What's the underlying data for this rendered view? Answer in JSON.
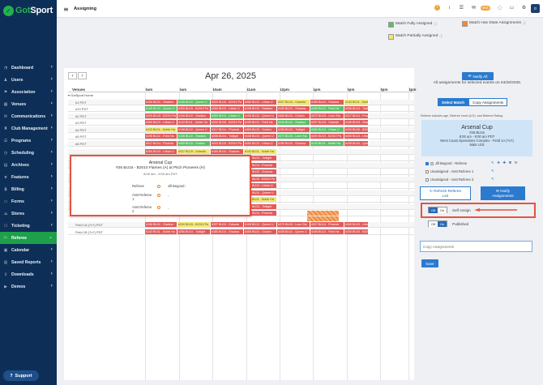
{
  "brand": {
    "name_pre": "Got",
    "name_post": "Sport"
  },
  "nav": [
    {
      "label": "Dashboard",
      "icon": "dashboard-icon",
      "glyph": "◔"
    },
    {
      "label": "Users",
      "icon": "users-icon",
      "glyph": "♟"
    },
    {
      "label": "Association",
      "icon": "association-icon",
      "glyph": "⚑"
    },
    {
      "label": "Venues",
      "icon": "venues-icon",
      "glyph": "▦"
    },
    {
      "label": "Communications",
      "icon": "communications-icon",
      "glyph": "✉"
    },
    {
      "label": "Club Management",
      "icon": "club-icon",
      "glyph": "♜"
    },
    {
      "label": "Programs",
      "icon": "programs-icon",
      "glyph": "☰"
    },
    {
      "label": "Scheduling",
      "icon": "scheduling-icon",
      "glyph": "◷"
    },
    {
      "label": "Archives",
      "icon": "archives-icon",
      "glyph": "▤"
    },
    {
      "label": "Features",
      "icon": "features-icon",
      "glyph": "★"
    },
    {
      "label": "Billing",
      "icon": "billing-icon",
      "glyph": "$"
    },
    {
      "label": "Forms",
      "icon": "forms-icon",
      "glyph": "▭"
    },
    {
      "label": "Stores",
      "icon": "stores-icon",
      "glyph": "⌂"
    },
    {
      "label": "Ticketing",
      "icon": "ticketing-icon",
      "glyph": "⎔"
    },
    {
      "label": "Referee",
      "icon": "referee-icon",
      "glyph": "⚐",
      "active": true
    },
    {
      "label": "Calendar",
      "icon": "calendar-icon",
      "glyph": "▣"
    },
    {
      "label": "Saved Reports",
      "icon": "reports-icon",
      "glyph": "▥"
    },
    {
      "label": "Downloads",
      "icon": "downloads-icon",
      "glyph": "⇩"
    },
    {
      "label": "Demos",
      "icon": "demos-icon",
      "glyph": "▶"
    }
  ],
  "support_label": "Support",
  "page_title": "Assigning",
  "topbar": {
    "badge": "NEW",
    "avatar": "G"
  },
  "legend": {
    "fully": "Match Fully Assigned",
    "partial": "Match Partially Assigned",
    "state": "Match Has State Assignments",
    "colors": {
      "fully": "#5cbf66",
      "partial": "#f3e86a",
      "state": "#f08a3c"
    }
  },
  "calendar": {
    "date": "Apr 26, 2025",
    "venues_header": "Venues",
    "times": [
      "8am",
      "9am",
      "10am",
      "11am",
      "12pm",
      "1pm",
      "2pm",
      "3pm",
      "4pm"
    ],
    "group": "GotSport Home",
    "venue_rows": [
      "#1 PDT",
      "#10 PDT",
      "#2 PDT",
      "#3 PDT",
      "#4 PDT",
      "#5 PDT",
      "#6 PDT"
    ],
    "lower_rows": [
      "Field 1A (7v7) PDT",
      "Field 1B (7v7) PDT"
    ],
    "cell_text": {
      "stadium": "#106 BU10 - Stadium",
      "queen": "#108 BU10 - Queen U",
      "b2010": "#200 BU15 - B2010 Pa",
      "urban": "#260 BU13 - Urban U",
      "galactic": "#337 BU15 - Galactic",
      "shadow": "#180 BU10 - Shadow",
      "noble": "#143 BU11 - Noble Ha",
      "field": "#195 BU12 - Field Ha",
      "twilight": "#256 BU13 - Twilight",
      "golden": "#365 BU15 - Golden",
      "lone": "#370 BU15 - Lone Sta",
      "phoenix": "#317 BU14 - Phoenix"
    }
  },
  "popover": {
    "title": "Arsenal Cup",
    "subtitle": "#26 BU15 - B2010 Flames (A) at Pitch Pioneers (H)",
    "time": "8:00 am - 9:00 am PDT",
    "roles": [
      {
        "role": "Referee",
        "value": "Jill Begood -"
      },
      {
        "role": "Asst Referee 1",
        "value": "-"
      },
      {
        "role": "Asst Referee 2",
        "value": "-"
      }
    ]
  },
  "right": {
    "notify_all": "Notify All",
    "note": "All assignments for selected events on 04/26/2025.",
    "tab_select": "Select Match",
    "tab_copy": "Copy Assignments",
    "includes": "Referee includes age, Referee Level (A-E), and Referee Rating.",
    "match": {
      "title": "Arsenal Cup",
      "id": "#26 BU15",
      "time": "8:00 am - 9:00 am PDT",
      "venue": "West Coast Operations Complex - Field 1A (7v7)",
      "division": "Male U15"
    },
    "officials": [
      {
        "label": "Jill Begood - Referee",
        "checked": true
      },
      {
        "label": "Unassigned - Asst Referee 1",
        "checked": false
      },
      {
        "label": "Unassigned - Asst Referee 2",
        "checked": false
      }
    ],
    "refresh_line1": "Refresh Referee",
    "refresh_line2": "List",
    "notify_line1": "Notify",
    "notify_line2": "Assignments",
    "self_assign": {
      "off": "Off",
      "on": "On",
      "label": "Self Assign"
    },
    "published": {
      "off": "Off",
      "on": "On",
      "label": "Published"
    },
    "copy_placeholder": "Copy Assignments",
    "save": "Save"
  }
}
